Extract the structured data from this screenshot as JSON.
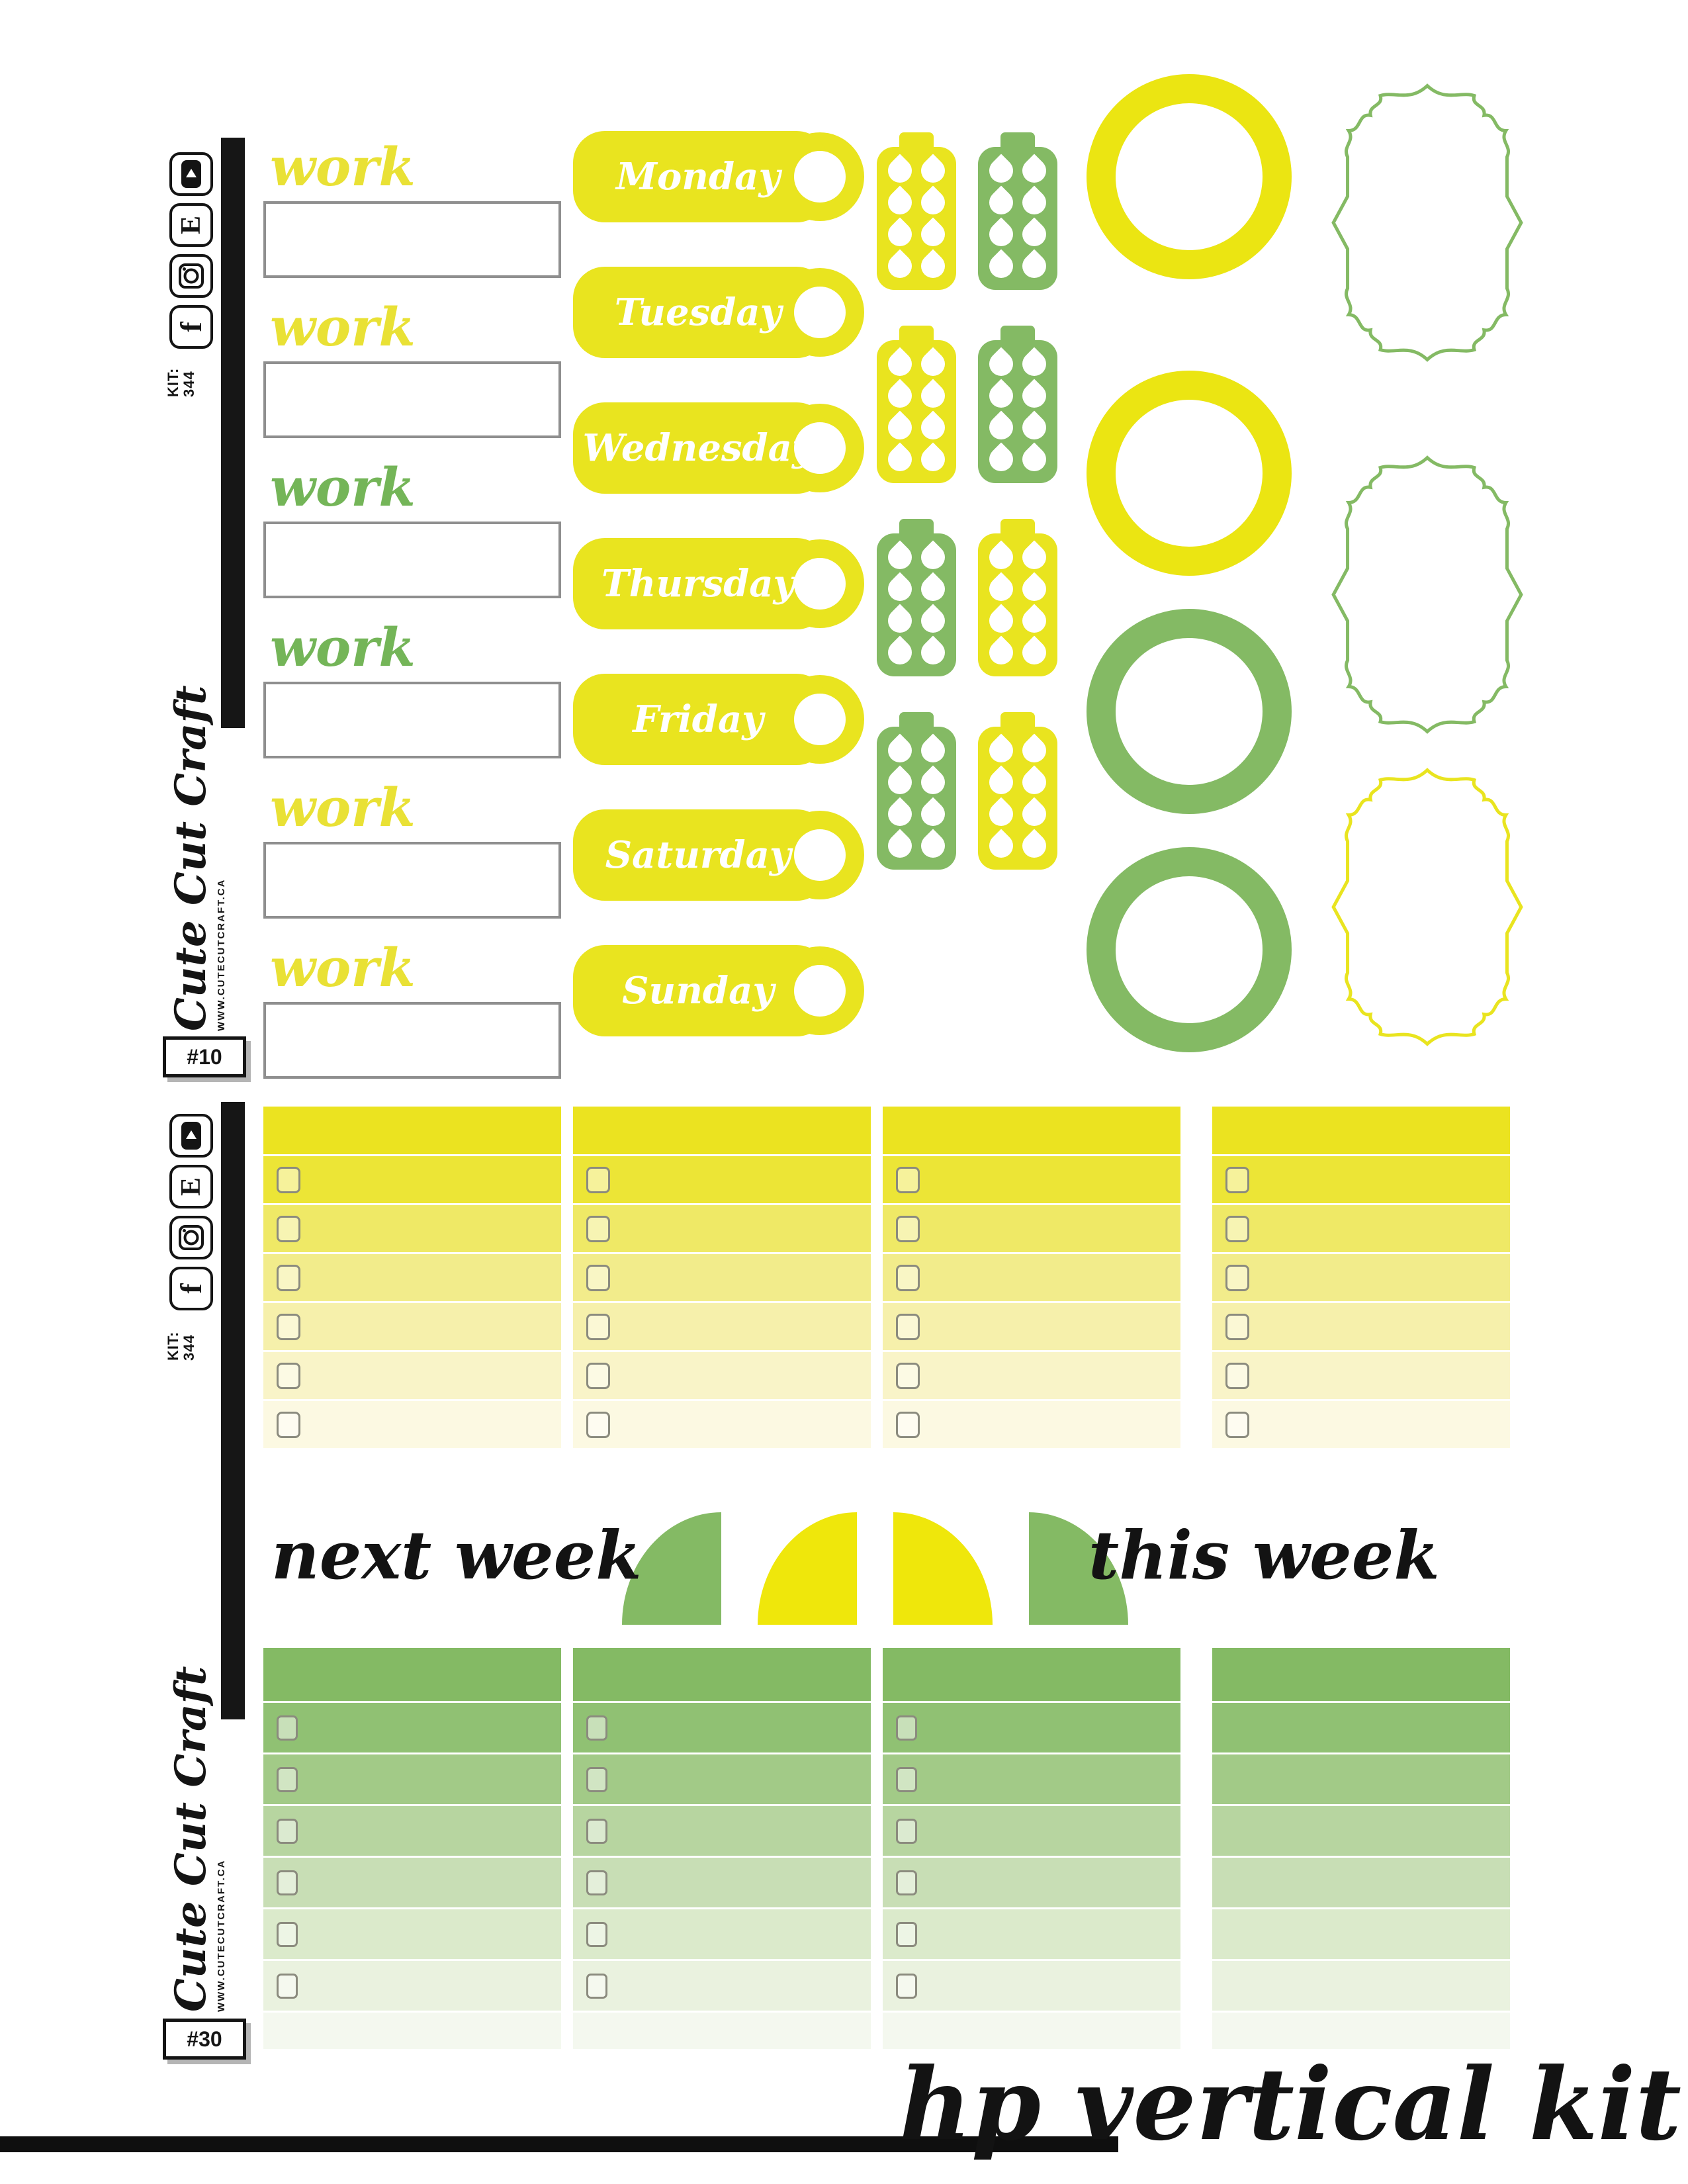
{
  "brand": {
    "logo_text": "Cute Cut Craft",
    "website": "WWW.CUTECUTCRAFT.CA",
    "kit_label": "KIT:",
    "kit_number": "344",
    "social_icons": [
      "youtube-icon",
      "etsy-icon",
      "instagram-icon",
      "facebook-icon"
    ]
  },
  "colors": {
    "yellow": "#e9e41f",
    "arc_yellow": "#efe70b",
    "ring_yellow": "#ebe512",
    "green": "#84ba64",
    "work_yellow": "#e9e135",
    "work_green": "#74b558",
    "black": "#151515",
    "box_border": "#8f8f8f",
    "yellow_header": "#ebe320",
    "yellow_rows": [
      "#ece536",
      "#efe966",
      "#f2ec8b",
      "#f6f0ab",
      "#f9f4c8",
      "#fcf9e2"
    ],
    "green_header": "#84ba64",
    "green_rows": [
      "#90c173",
      "#a2ca87",
      "#b7d5a0",
      "#c8deb5",
      "#dbeacb",
      "#eaf2df"
    ],
    "green_tail": "#f4f8ef"
  },
  "sheet1": {
    "number": "#10",
    "work_labels": [
      {
        "text": "work",
        "color": "yellow"
      },
      {
        "text": "work",
        "color": "yellow"
      },
      {
        "text": "work",
        "color": "green"
      },
      {
        "text": "work",
        "color": "green"
      },
      {
        "text": "work",
        "color": "yellow"
      },
      {
        "text": "work",
        "color": "yellow"
      }
    ],
    "day_tags": [
      "Monday",
      "Tuesday",
      "Wednesday",
      "Thursday",
      "Friday",
      "Saturday",
      "Sunday"
    ],
    "bottle_rows": [
      [
        "yellow",
        "green"
      ],
      [
        "yellow",
        "green"
      ],
      [
        "green",
        "yellow"
      ],
      [
        "green",
        "yellow"
      ]
    ],
    "circles": [
      "yellow",
      "yellow",
      "green",
      "green"
    ],
    "frames": [
      "green",
      "green",
      "yellow"
    ]
  },
  "sheet2": {
    "number": "#30",
    "next_week_label": "next week",
    "this_week_label": "this week",
    "arcs": [
      {
        "color": "green",
        "curve": "left"
      },
      {
        "color": "yellow",
        "curve": "left"
      },
      {
        "color": "yellow",
        "curve": "right"
      },
      {
        "color": "green",
        "curve": "right"
      }
    ],
    "yellow_checklist": {
      "columns": 4,
      "rows_per_column": 6,
      "checkbox_columns": [
        true,
        true,
        true,
        true
      ]
    },
    "green_checklist": {
      "columns": 4,
      "rows_per_column": 6,
      "checkbox_columns": [
        true,
        true,
        true,
        false
      ]
    }
  },
  "footer": {
    "title": "hp vertical kit"
  }
}
